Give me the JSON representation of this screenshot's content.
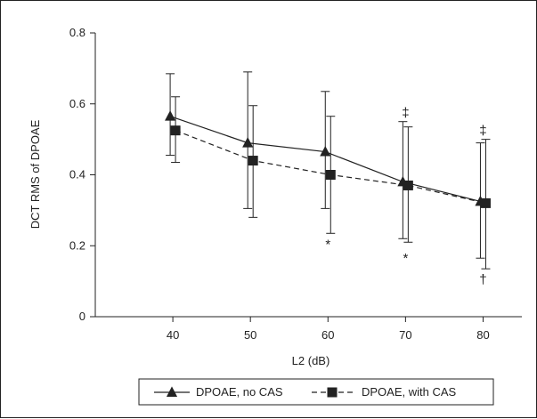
{
  "chart_data": {
    "type": "line",
    "title": "",
    "xlabel": "L2 (dB)",
    "ylabel": "DCT RMS of DPOAE",
    "x": [
      40,
      50,
      60,
      70,
      80
    ],
    "xticks": [
      "40",
      "50",
      "60",
      "70",
      "80"
    ],
    "xlim": [
      30,
      85
    ],
    "ylim": [
      0,
      0.8
    ],
    "yticks": [
      "0",
      "0.2",
      "0.4",
      "0.6",
      "0.8"
    ],
    "ytick_values": [
      0,
      0.2,
      0.4,
      0.6,
      0.8
    ],
    "grid": false,
    "legend_position": "bottom",
    "series": [
      {
        "name": "DPOAE, no CAS",
        "marker": "triangle",
        "line_style": "solid",
        "values": [
          0.565,
          0.49,
          0.465,
          0.38,
          0.325
        ],
        "error_upper": [
          0.685,
          0.69,
          0.635,
          0.55,
          0.49
        ],
        "error_lower": [
          0.455,
          0.305,
          0.305,
          0.22,
          0.165
        ]
      },
      {
        "name": "DPOAE, with CAS",
        "marker": "square",
        "line_style": "dashed",
        "values": [
          0.525,
          0.44,
          0.4,
          0.37,
          0.32
        ],
        "error_upper": [
          0.62,
          0.595,
          0.565,
          0.535,
          0.5
        ],
        "error_lower": [
          0.435,
          0.28,
          0.235,
          0.21,
          0.135
        ]
      }
    ],
    "annotations": [
      {
        "text": "*",
        "x": 60,
        "y": 0.205
      },
      {
        "text": "‡",
        "x": 70,
        "y": 0.575
      },
      {
        "text": "*",
        "x": 70,
        "y": 0.165
      },
      {
        "text": "‡",
        "x": 80,
        "y": 0.525
      },
      {
        "text": "†",
        "x": 80,
        "y": 0.105
      }
    ],
    "colors": {
      "line": "#222222",
      "background": "#ffffff"
    }
  }
}
